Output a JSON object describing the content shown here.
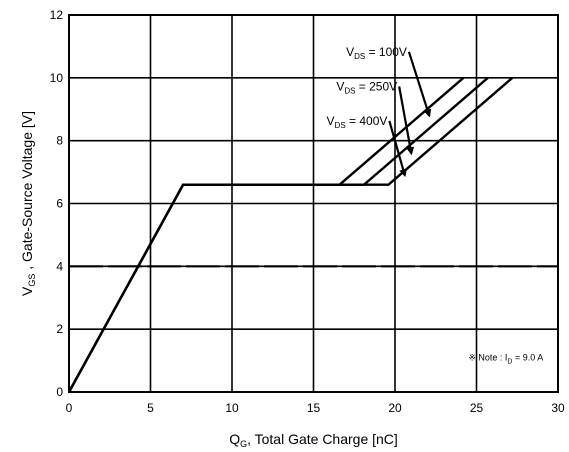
{
  "chart_data": {
    "type": "line",
    "title": "",
    "xlabel": "Q_G, Total Gate Charge [nC]",
    "ylabel": "V_GS , Gate-Source Voltage [V]",
    "xlim": [
      0,
      30
    ],
    "ylim": [
      0,
      12
    ],
    "xticks": [
      "0",
      "5",
      "10",
      "15",
      "20",
      "25",
      "30"
    ],
    "yticks": [
      "0",
      "2",
      "4",
      "6",
      "8",
      "10",
      "12"
    ],
    "grid": true,
    "series": [
      {
        "name": "V_DS = 100V",
        "points": [
          [
            0,
            0
          ],
          [
            7.0,
            6.6
          ],
          [
            16.6,
            6.6
          ],
          [
            24.2,
            10.0
          ]
        ]
      },
      {
        "name": "V_DS = 250V",
        "points": [
          [
            0,
            0
          ],
          [
            7.0,
            6.6
          ],
          [
            18.1,
            6.6
          ],
          [
            25.7,
            10.0
          ]
        ]
      },
      {
        "name": "V_DS = 400V",
        "points": [
          [
            0,
            0
          ],
          [
            7.0,
            6.6
          ],
          [
            19.6,
            6.6
          ],
          [
            27.2,
            10.0
          ]
        ]
      }
    ],
    "reference_line": {
      "y": 4.0,
      "style": "dashed"
    },
    "annotations": [
      {
        "text": "V_DS = 100V",
        "label_at": [
          17.0,
          10.7
        ],
        "arrow_to": [
          22.1,
          8.8
        ]
      },
      {
        "text": "V_DS = 250V",
        "label_at": [
          16.4,
          9.6
        ],
        "arrow_to": [
          21.0,
          7.6
        ]
      },
      {
        "text": "V_DS = 400V",
        "label_at": [
          15.8,
          8.5
        ],
        "arrow_to": [
          20.6,
          6.9
        ]
      }
    ],
    "note": "※ Note : I_D = 9.0 A",
    "note_at": [
      24.5,
      1.0
    ]
  },
  "colors": {
    "line": "#000000",
    "grid": "#000000",
    "background": "#ffffff"
  }
}
